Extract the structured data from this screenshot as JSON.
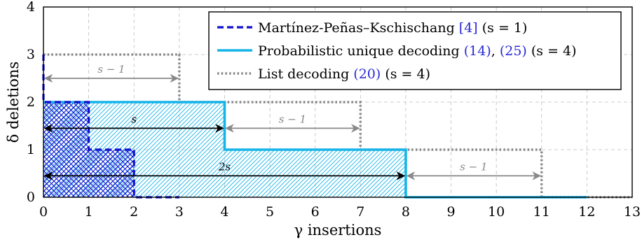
{
  "chart_data": {
    "type": "line",
    "xlabel": "γ insertions",
    "ylabel": "δ deletions",
    "xlim": [
      0,
      13
    ],
    "ylim": [
      0,
      4
    ],
    "xticks": [
      "0",
      "1",
      "2",
      "3",
      "4",
      "5",
      "6",
      "7",
      "8",
      "9",
      "10",
      "11",
      "12",
      "13"
    ],
    "yticks": [
      "0",
      "1",
      "2",
      "3",
      "4"
    ],
    "grid": true,
    "legend_position": "top-right",
    "series": [
      {
        "name": "Martínez-Peñas–Kschischang [4] (s = 1)",
        "legend_parts": [
          "Martínez-Peñas–Kschischang ",
          "[4]",
          " (s = 1)"
        ],
        "style": "dashed",
        "color": "#1010d0",
        "points": [
          [
            0,
            3
          ],
          [
            0,
            2
          ],
          [
            1,
            2
          ],
          [
            1,
            1
          ],
          [
            2,
            1
          ],
          [
            2,
            0
          ],
          [
            3,
            0
          ]
        ]
      },
      {
        "name": "Probabilistic unique decoding (14), (25) (s = 4)",
        "legend_parts": [
          "Probabilistic unique decoding ",
          "(14)",
          ", ",
          "(25)",
          " (s = 4)"
        ],
        "style": "solid",
        "color": "#16b4e8",
        "points": [
          [
            0,
            2
          ],
          [
            4,
            2
          ],
          [
            4,
            1
          ],
          [
            8,
            1
          ],
          [
            8,
            0
          ],
          [
            12,
            0
          ]
        ]
      },
      {
        "name": "List decoding (20) (s = 4)",
        "legend_parts": [
          "List decoding ",
          "(20)",
          " (s = 4)"
        ],
        "style": "dotted",
        "color": "#888888",
        "points": [
          [
            0,
            3
          ],
          [
            3,
            3
          ],
          [
            3,
            2
          ],
          [
            7,
            2
          ],
          [
            7,
            1
          ],
          [
            11,
            1
          ],
          [
            11,
            0
          ],
          [
            13,
            0
          ]
        ]
      }
    ],
    "regions": [
      {
        "style": "crosshatch",
        "color": "#1010d0",
        "points": [
          [
            0,
            0
          ],
          [
            0,
            2
          ],
          [
            1,
            2
          ],
          [
            1,
            1
          ],
          [
            2,
            1
          ],
          [
            2,
            0
          ]
        ]
      },
      {
        "style": "hatch",
        "color": "#16b4e8",
        "points": [
          [
            0,
            0
          ],
          [
            0,
            2
          ],
          [
            4,
            2
          ],
          [
            4,
            1
          ],
          [
            8,
            1
          ],
          [
            8,
            0
          ]
        ]
      }
    ],
    "annotations": [
      {
        "label": "s − 1",
        "y": 2.5,
        "x_from": 0,
        "x_to": 3,
        "color": "#888888"
      },
      {
        "label": "s",
        "y": 1.45,
        "x_from": 0,
        "x_to": 4,
        "color": "#000000"
      },
      {
        "label": "s − 1",
        "y": 1.45,
        "x_from": 4,
        "x_to": 7,
        "color": "#888888"
      },
      {
        "label": "2s",
        "y": 0.45,
        "x_from": 0,
        "x_to": 8,
        "color": "#000000"
      },
      {
        "label": "s − 1",
        "y": 0.45,
        "x_from": 8,
        "x_to": 11,
        "color": "#888888"
      }
    ]
  }
}
